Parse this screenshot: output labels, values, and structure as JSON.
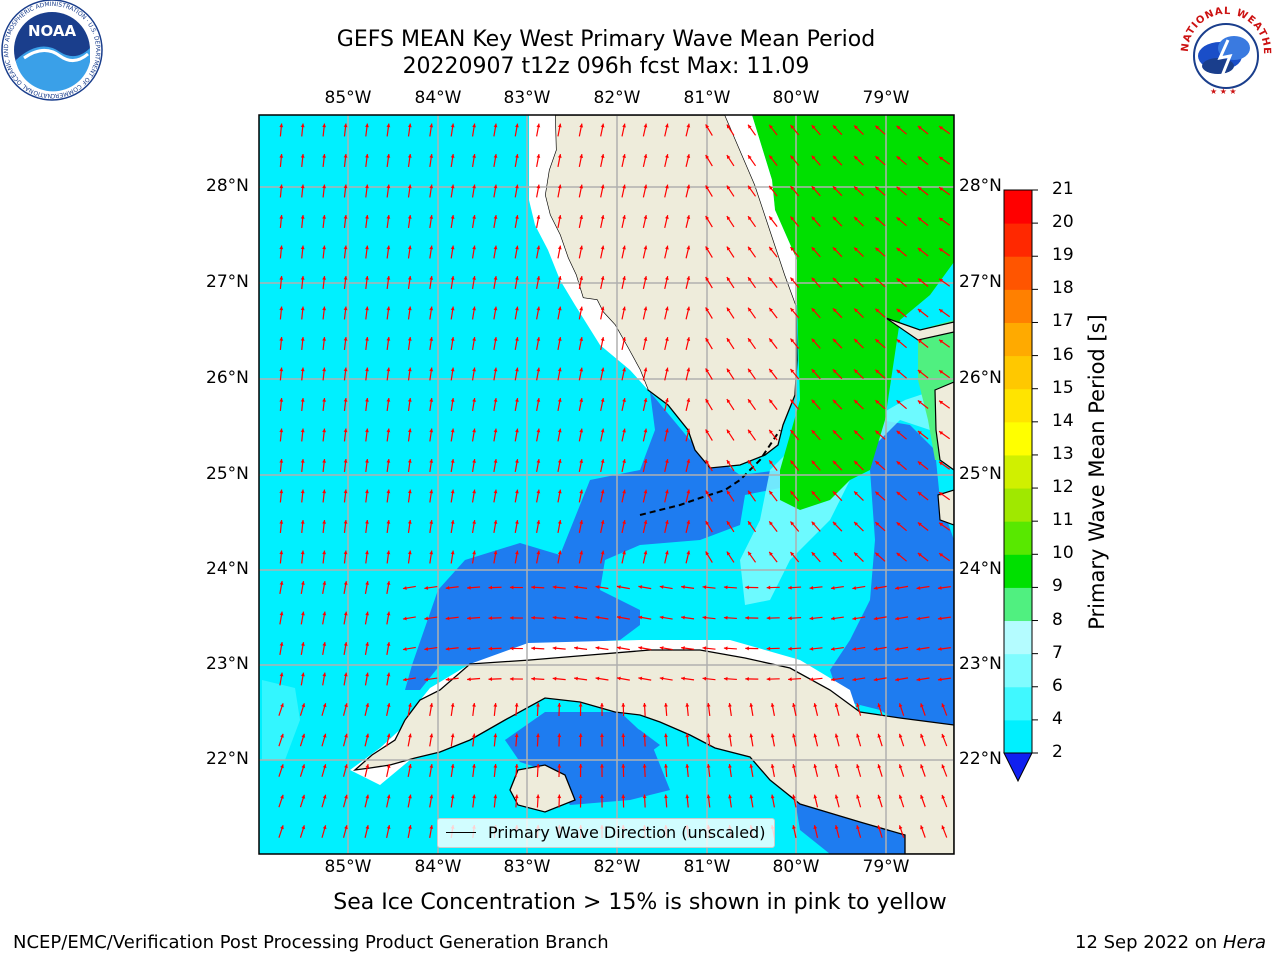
{
  "header": {
    "title_line1": "GEFS MEAN Key West Primary Wave Mean Period",
    "title_line2": "20220907 t12z 096h fcst   Max: 11.09"
  },
  "logos": {
    "noaa_text": "NOAA",
    "noaa_ring_text": "NATIONAL OCEANIC AND ATMOSPHERIC ADMINISTRATION · U.S. DEPARTMENT OF COMMERCE",
    "nws_ring_text": "NATIONAL WEATHER SERVICE"
  },
  "map": {
    "lon_labels": [
      "85°W",
      "84°W",
      "83°W",
      "82°W",
      "81°W",
      "80°W",
      "79°W"
    ],
    "lat_labels": [
      "28°N",
      "27°N",
      "26°N",
      "25°N",
      "24°N",
      "23°N",
      "22°N"
    ],
    "colors": {
      "land": "#eeecdb",
      "period_2_4": "#1e7cf0",
      "period_4_6": "#00f0ff",
      "period_10_11": "#00e000",
      "arrow": "#ff0000"
    },
    "legend_label": "Primary Wave Direction (unscaled)"
  },
  "colorbar": {
    "title": "Primary Wave Mean Period [s]",
    "ticks": [
      "2",
      "4",
      "6",
      "7",
      "8",
      "9",
      "10",
      "11",
      "12",
      "13",
      "14",
      "15",
      "16",
      "17",
      "18",
      "19",
      "20",
      "21"
    ],
    "colors": [
      "#1464f0",
      "#00f0ff",
      "#40f8ff",
      "#80fcff",
      "#b4fcff",
      "#50f080",
      "#00e000",
      "#58e800",
      "#a0e800",
      "#d0f000",
      "#ffff00",
      "#ffe400",
      "#ffc800",
      "#ffaa00",
      "#ff8000",
      "#ff5500",
      "#ff2800",
      "#ff0000"
    ]
  },
  "note": "Sea Ice Concentration > 15% is shown in pink to yellow",
  "footer": {
    "left": "NCEP/EMC/Verification Post Processing Product Generation Branch",
    "right_prefix": "12 Sep 2022 on ",
    "right_host": "Hera"
  }
}
